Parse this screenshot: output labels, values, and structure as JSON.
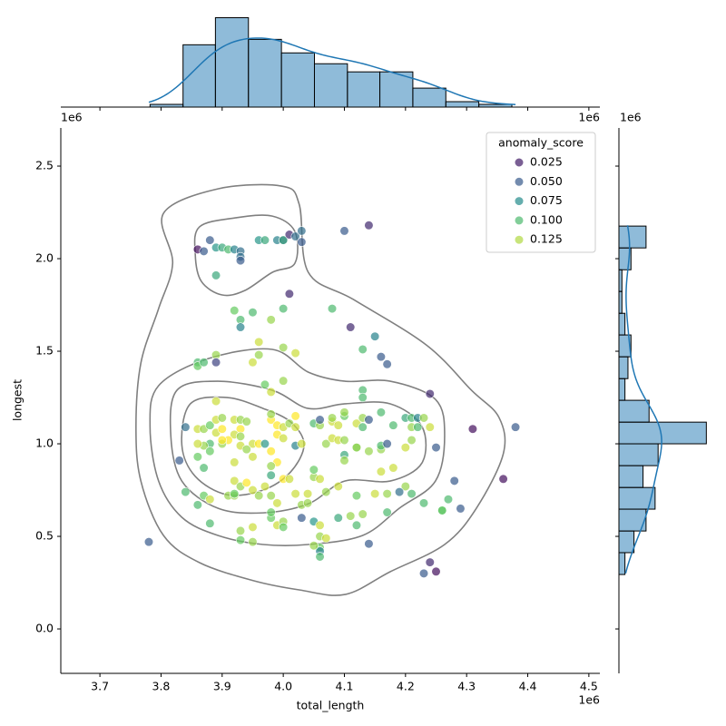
{
  "chart_data": {
    "type": "scatter",
    "xlabel": "total_length",
    "ylabel": "longest",
    "x_offset": "1e6",
    "xlim": [
      3.636,
      4.518
    ],
    "ylim": [
      -0.24,
      2.706
    ],
    "xticks": [
      3.7,
      3.8,
      3.9,
      {
        "value": 4.0,
        "label": "4.0"
      },
      4.1,
      4.2,
      4.3,
      4.4,
      4.5
    ],
    "yticks": [
      {
        "value": 0,
        "label": "0.0"
      },
      0.5,
      {
        "value": 1,
        "label": "1.0"
      },
      1.5,
      {
        "value": 2,
        "label": "2.0"
      },
      2.5
    ],
    "hue_lim": [
      0.015,
      0.14
    ],
    "palette": [
      "#440154",
      "#3b528b",
      "#21918c",
      "#5ec962",
      "#fde725"
    ],
    "legend": {
      "title": "anomaly_score",
      "corner": "upper right",
      "entries": [
        0.025,
        {
          "value": 0.05,
          "label": "0.050"
        },
        0.075,
        {
          "value": 0.1,
          "label": "0.100"
        },
        0.125
      ]
    },
    "hist_color": "#1f77b4",
    "contour_color": "#808080",
    "x": [
      3.86,
      3.88,
      3.87,
      3.89,
      3.9,
      3.91,
      3.92,
      3.93,
      3.93,
      3.93,
      3.89,
      3.96,
      3.97,
      3.99,
      4.0,
      4.0,
      4.01,
      4.02,
      4.03,
      4.03,
      4.1,
      4.14,
      4.01,
      4.08,
      4.11,
      4.0,
      3.92,
      3.93,
      3.93,
      3.95,
      3.98,
      4.15,
      4.13,
      4.16,
      4.17,
      3.96,
      4.0,
      4.02,
      3.96,
      3.95,
      3.89,
      3.86,
      3.86,
      3.87,
      3.89,
      3.97,
      4.0,
      3.98,
      4.24,
      4.13,
      4.13,
      3.84,
      3.86,
      3.87,
      3.88,
      3.89,
      3.9,
      3.89,
      3.9,
      3.92,
      3.93,
      3.94,
      3.93,
      3.92,
      3.91,
      3.9,
      3.88,
      3.87,
      3.86,
      3.88,
      3.9,
      3.93,
      3.93,
      3.95,
      3.96,
      3.97,
      3.92,
      3.94,
      3.95,
      3.86,
      3.83,
      3.87,
      3.89,
      3.98,
      3.99,
      4.0,
      4.01,
      4.02,
      4.02,
      3.98,
      3.99,
      4.0,
      4.02,
      4.03,
      3.98,
      3.99,
      4.0,
      4.01,
      3.98,
      3.98,
      4.05,
      4.06,
      4.06,
      4.08,
      4.08,
      4.09,
      4.1,
      4.1,
      4.12,
      4.13,
      4.14,
      4.13,
      4.16,
      4.18,
      4.2,
      4.21,
      4.22,
      4.23,
      4.21,
      4.22,
      4.24,
      4.21,
      4.07,
      4.08,
      4.09,
      4.1,
      4.1,
      4.1,
      4.12,
      4.12,
      4.14,
      4.16,
      4.16,
      4.17,
      4.2,
      4.25,
      4.31,
      4.38,
      4.36,
      4.28,
      4.29,
      4.27,
      4.26,
      4.26,
      4.23,
      4.21,
      4.2,
      4.19,
      4.18,
      4.16,
      4.17,
      4.15,
      4.17,
      4.13,
      4.11,
      4.09,
      4.12,
      4.09,
      4.12,
      4.14,
      4.24,
      4.25,
      4.23,
      3.78,
      3.84,
      3.86,
      3.87,
      3.88,
      3.88,
      3.91,
      3.92,
      3.92,
      3.92,
      3.93,
      3.94,
      3.95,
      3.96,
      3.97,
      3.98,
      3.99,
      3.93,
      3.93,
      3.95,
      3.95,
      3.98,
      3.98,
      3.99,
      4.0,
      4.0,
      4.02,
      4.03,
      4.04,
      4.04,
      4.03,
      4.05,
      4.05,
      4.06,
      4.06,
      4.06,
      4.06,
      4.06,
      4.06,
      4.05,
      4.07,
      4.05,
      4.07
    ],
    "y": [
      2.05,
      2.1,
      2.04,
      2.06,
      2.06,
      2.05,
      2.05,
      2.04,
      2.01,
      1.99,
      1.91,
      2.1,
      2.1,
      2.1,
      2.1,
      2.1,
      2.13,
      2.12,
      2.15,
      2.09,
      2.15,
      2.18,
      1.81,
      1.73,
      1.63,
      1.73,
      1.72,
      1.67,
      1.63,
      1.71,
      1.67,
      1.58,
      1.51,
      1.47,
      1.43,
      1.55,
      1.52,
      1.49,
      1.48,
      1.44,
      1.48,
      1.44,
      1.42,
      1.44,
      1.44,
      1.32,
      1.34,
      1.28,
      1.27,
      1.29,
      1.25,
      1.09,
      1.08,
      1.08,
      1.1,
      1.06,
      1.08,
      1.13,
      1.14,
      1.13,
      1.13,
      1.12,
      1.08,
      1.05,
      1.02,
      1.0,
      1.0,
      0.99,
      1.0,
      0.96,
      1.02,
      0.99,
      1.04,
      1.0,
      1.0,
      1.0,
      0.9,
      0.97,
      0.93,
      0.93,
      0.91,
      0.87,
      1.23,
      1.13,
      1.1,
      1.09,
      1.11,
      1.15,
      1.09,
      1.16,
      1.05,
      1.03,
      0.99,
      1.0,
      0.96,
      0.9,
      0.81,
      0.81,
      0.83,
      0.88,
      1.11,
      1.1,
      1.13,
      1.12,
      1.14,
      1.1,
      1.15,
      1.17,
      1.11,
      1.14,
      1.13,
      1.09,
      1.17,
      1.1,
      1.14,
      1.14,
      1.14,
      1.14,
      1.09,
      1.09,
      1.09,
      1.02,
      1.0,
      1.03,
      1.02,
      1.02,
      0.94,
      0.91,
      0.98,
      0.98,
      0.96,
      0.97,
      0.99,
      1.0,
      0.98,
      0.98,
      1.08,
      1.09,
      0.81,
      0.8,
      0.65,
      0.7,
      0.64,
      0.64,
      0.68,
      0.73,
      0.77,
      0.74,
      0.87,
      0.85,
      0.73,
      0.73,
      0.63,
      0.62,
      0.61,
      0.6,
      0.72,
      0.77,
      0.56,
      0.46,
      0.36,
      0.31,
      0.3,
      0.47,
      0.74,
      0.67,
      0.72,
      0.57,
      0.7,
      0.72,
      0.72,
      0.73,
      0.8,
      0.77,
      0.79,
      0.75,
      0.72,
      0.77,
      0.72,
      0.68,
      0.53,
      0.48,
      0.47,
      0.55,
      0.6,
      0.63,
      0.56,
      0.58,
      0.55,
      0.73,
      0.67,
      0.73,
      0.68,
      0.6,
      0.58,
      0.82,
      0.81,
      0.56,
      0.5,
      0.44,
      0.42,
      0.39,
      0.45,
      0.49,
      0.86,
      0.74
    ],
    "hue": [
      0.02,
      0.05,
      0.05,
      0.08,
      0.09,
      0.1,
      0.07,
      0.06,
      0.06,
      0.05,
      0.09,
      0.08,
      0.09,
      0.07,
      0.05,
      0.09,
      0.03,
      0.06,
      0.06,
      0.05,
      0.05,
      0.03,
      0.03,
      0.1,
      0.03,
      0.1,
      0.11,
      0.1,
      0.07,
      0.1,
      0.12,
      0.07,
      0.1,
      0.05,
      0.05,
      0.13,
      0.12,
      0.13,
      0.12,
      0.13,
      0.12,
      0.1,
      0.11,
      0.1,
      0.04,
      0.11,
      0.12,
      0.13,
      0.03,
      0.1,
      0.1,
      0.06,
      0.13,
      0.12,
      0.11,
      0.13,
      0.14,
      0.13,
      0.12,
      0.13,
      0.12,
      0.12,
      0.14,
      0.13,
      0.14,
      0.12,
      0.1,
      0.12,
      0.13,
      0.11,
      0.14,
      0.13,
      0.12,
      0.13,
      0.14,
      0.08,
      0.13,
      0.12,
      0.13,
      0.11,
      0.05,
      0.1,
      0.13,
      0.14,
      0.14,
      0.13,
      0.12,
      0.14,
      0.13,
      0.12,
      0.14,
      0.13,
      0.07,
      0.13,
      0.14,
      0.14,
      0.14,
      0.13,
      0.09,
      0.12,
      0.1,
      0.12,
      0.05,
      0.13,
      0.12,
      0.13,
      0.11,
      0.12,
      0.13,
      0.12,
      0.05,
      0.1,
      0.1,
      0.1,
      0.09,
      0.1,
      0.07,
      0.12,
      0.12,
      0.1,
      0.13,
      0.12,
      0.12,
      0.13,
      0.13,
      0.12,
      0.09,
      0.12,
      0.11,
      0.12,
      0.12,
      0.12,
      0.1,
      0.05,
      0.13,
      0.05,
      0.02,
      0.05,
      0.02,
      0.05,
      0.05,
      0.1,
      0.1,
      0.11,
      0.1,
      0.1,
      0.12,
      0.06,
      0.13,
      0.13,
      0.12,
      0.13,
      0.1,
      0.12,
      0.12,
      0.09,
      0.11,
      0.13,
      0.1,
      0.05,
      0.03,
      0.02,
      0.05,
      0.05,
      0.1,
      0.1,
      0.11,
      0.1,
      0.13,
      0.12,
      0.12,
      0.11,
      0.13,
      0.12,
      0.14,
      0.13,
      0.12,
      0.13,
      0.12,
      0.13,
      0.12,
      0.11,
      0.12,
      0.13,
      0.11,
      0.11,
      0.13,
      0.12,
      0.11,
      0.13,
      0.12,
      0.13,
      0.12,
      0.05,
      0.08,
      0.12,
      0.13,
      0.13,
      0.12,
      0.11,
      0.07,
      0.1,
      0.12,
      0.13,
      0.11,
      0.12
    ],
    "contours": [
      {
        "x": [
          3.819,
          3.804,
          3.893,
          3.997,
          4.026,
          4.041,
          4.115,
          4.234,
          4.308,
          4.353,
          4.36,
          4.316,
          4.264,
          4.175,
          4.101,
          4.026,
          3.952,
          3.863,
          3.804,
          3.767,
          3.759,
          3.767,
          3.796
        ],
        "y": [
          1.975,
          2.245,
          2.377,
          2.392,
          2.294,
          1.926,
          1.779,
          1.534,
          1.289,
          1.142,
          0.946,
          0.652,
          0.456,
          0.309,
          0.186,
          0.211,
          0.26,
          0.358,
          0.505,
          0.799,
          1.093,
          1.436,
          1.73
        ]
      },
      {
        "x": [
          3.863,
          3.923,
          3.982,
          4.019,
          4.019,
          3.982,
          3.937,
          3.9,
          3.866,
          3.856
        ],
        "y": [
          2.172,
          2.221,
          2.23,
          2.147,
          1.975,
          1.926,
          1.828,
          1.804,
          1.877,
          2.025
        ]
      },
      {
        "x": [
          3.796,
          3.878,
          3.982,
          4.041,
          4.101,
          4.175,
          4.249,
          4.264,
          4.249,
          4.19,
          4.13,
          4.041,
          3.967,
          3.893,
          3.834,
          3.796,
          3.782
        ],
        "y": [
          1.314,
          1.461,
          1.51,
          1.387,
          1.338,
          1.338,
          1.24,
          1.044,
          0.799,
          0.652,
          0.505,
          0.456,
          0.456,
          0.505,
          0.603,
          0.799,
          1.093
        ]
      },
      {
        "x": [
          3.826,
          3.893,
          3.982,
          4.041,
          4.101,
          4.175,
          4.227,
          4.227,
          4.175,
          4.101,
          4.041,
          3.967,
          3.893,
          3.834,
          3.816
        ],
        "y": [
          1.289,
          1.338,
          1.289,
          1.191,
          1.216,
          1.216,
          1.093,
          0.897,
          0.799,
          0.799,
          0.676,
          0.627,
          0.652,
          0.799,
          1.044
        ]
      },
      {
        "x": [
          3.848,
          3.908,
          3.967,
          4.012,
          4.034,
          4.012,
          3.967,
          3.908,
          3.856,
          3.834
        ],
        "y": [
          1.216,
          1.25,
          1.191,
          1.118,
          0.995,
          0.848,
          0.75,
          0.725,
          0.824,
          0.995
        ]
      }
    ],
    "top_hist": {
      "bins": [
        3.782,
        3.836,
        3.889,
        3.943,
        3.997,
        4.051,
        4.105,
        4.158,
        4.212,
        4.266,
        4.32,
        4.374
      ],
      "counts": [
        1,
        23,
        33,
        25,
        20,
        16,
        13,
        13,
        7,
        2,
        1
      ],
      "ylim": [
        0,
        33.5
      ]
    },
    "right_hist": {
      "bins": [
        0.294,
        0.412,
        0.529,
        0.647,
        0.764,
        0.882,
        1.0,
        1.117,
        1.235,
        1.352,
        1.47,
        1.588,
        1.705,
        1.823,
        1.94,
        2.058,
        2.176
      ],
      "counts": [
        2,
        5,
        9,
        12,
        8,
        13,
        29,
        10,
        2,
        3,
        4,
        2,
        1,
        1,
        4,
        9
      ],
      "xlim": [
        0,
        29.5
      ]
    }
  }
}
